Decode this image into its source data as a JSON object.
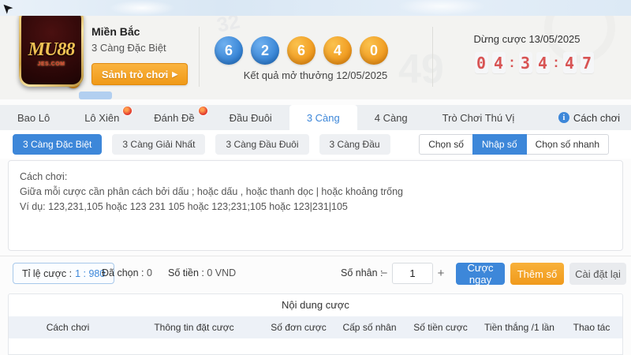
{
  "colors": {
    "accent_blue": "#3d87d9",
    "accent_orange": "#f09a18",
    "countdown_red": "#d85454",
    "ball_blue": "#2f7ed2",
    "ball_orange": "#ef9418"
  },
  "header": {
    "logo": {
      "brand": "MU88",
      "domain": "JES.COM"
    },
    "region_title": "Miền Bắc",
    "game_title": "3 Càng Đặc Biệt",
    "lobby_button": "Sảnh trò chơi",
    "result": {
      "balls": [
        {
          "value": "6",
          "color": "blue"
        },
        {
          "value": "2",
          "color": "blue"
        },
        {
          "value": "6",
          "color": "orange"
        },
        {
          "value": "4",
          "color": "orange"
        },
        {
          "value": "0",
          "color": "orange"
        }
      ],
      "caption": "Kết quả mở thưởng 12/05/2025"
    },
    "countdown": {
      "label": "Dừng cược 13/05/2025",
      "digits": [
        "0",
        "4",
        ":",
        "3",
        "4",
        ":",
        "4",
        "7"
      ]
    },
    "watermarks": {
      "big_number": "49",
      "small_number": "32"
    }
  },
  "tabs": {
    "items": [
      {
        "label": "Bao Lô"
      },
      {
        "label": "Lô Xiên"
      },
      {
        "label": "Đánh Đề"
      },
      {
        "label": "Đầu Đuôi"
      },
      {
        "label": "3 Càng"
      },
      {
        "label": "4 Càng"
      },
      {
        "label": "Trò Chơi Thú Vị"
      }
    ],
    "active_index": 4,
    "hot_indexes": [
      1,
      2
    ],
    "help_label": "Cách chơi"
  },
  "subtabs": {
    "items": [
      {
        "label": "3 Càng Đặc Biệt"
      },
      {
        "label": "3 Càng Giải Nhất"
      },
      {
        "label": "3 Càng Đầu Đuôi"
      },
      {
        "label": "3 Càng Đầu"
      }
    ],
    "active_index": 0
  },
  "modes": {
    "items": [
      {
        "label": "Chọn số"
      },
      {
        "label": "Nhập số"
      },
      {
        "label": "Chọn số nhanh"
      }
    ],
    "active_index": 1
  },
  "entry_area": {
    "lines": [
      "Cách chơi:",
      "Giữa mỗi cược cần phân cách bởi dấu ; hoặc dấu , hoặc thanh dọc | hoặc khoảng trống",
      "Ví dụ: 123,231,105 hoặc 123 231 105 hoặc 123;231;105 hoặc 123|231|105"
    ]
  },
  "bet_bar": {
    "rate_label": "Tỉ lệ cược :",
    "rate_value": "1 : 980",
    "chosen_label": "Đã chọn :",
    "chosen_value": "0",
    "amount_label": "Số tiền :",
    "amount_value": "0 VND",
    "multiplier_label": "Số nhân :",
    "multiplier_value": "1",
    "minus": "−",
    "plus": "+",
    "bet_now_button": "Cược ngay",
    "add_number_button": "Thêm số",
    "reset_button": "Cài đặt lại"
  },
  "table": {
    "title": "Nội dung cược",
    "columns": [
      "Cách chơi",
      "Thông tin đặt cược",
      "Số đơn cược",
      "Cấp số nhân",
      "Số tiền cược",
      "Tiền thắng /1 lần",
      "Thao tác"
    ]
  }
}
